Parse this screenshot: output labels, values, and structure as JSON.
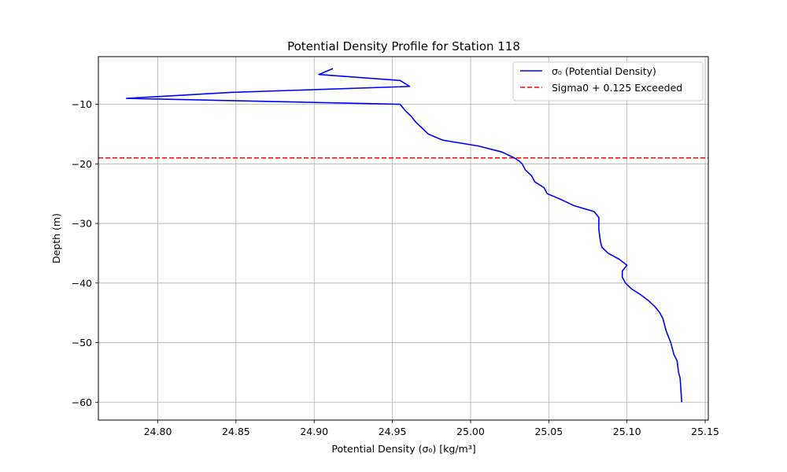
{
  "chart_data": {
    "type": "line",
    "title": "Potential Density Profile for Station 118",
    "xlabel": "Potential Density (σ₀) [kg/m³]",
    "ylabel": "Depth (m)",
    "xlim": [
      24.762,
      25.152
    ],
    "ylim": [
      -63,
      -2
    ],
    "xticks": [
      24.8,
      24.85,
      24.9,
      24.95,
      25.0,
      25.05,
      25.1,
      25.15
    ],
    "xtick_labels": [
      "24.80",
      "24.85",
      "24.90",
      "24.95",
      "25.00",
      "25.05",
      "25.10",
      "25.15"
    ],
    "yticks": [
      -10,
      -20,
      -30,
      -40,
      -50,
      -60
    ],
    "ytick_labels": [
      "−10",
      "−20",
      "−30",
      "−40",
      "−50",
      "−60"
    ],
    "grid": true,
    "legend_position": "upper-right",
    "series": [
      {
        "name": "σ₀ (Potential Density)",
        "color": "#0000ff",
        "style": "solid",
        "x": [
          24.912,
          24.903,
          24.955,
          24.961,
          24.847,
          24.78,
          24.955,
          24.958,
          24.962,
          24.965,
          24.969,
          24.973,
          24.982,
          25.005,
          25.02,
          25.028,
          25.031,
          25.033,
          25.035,
          25.039,
          25.04,
          25.041,
          25.047,
          25.048,
          25.049,
          25.058,
          25.066,
          25.079,
          25.082,
          25.082,
          25.083,
          25.084,
          25.088,
          25.095,
          25.1,
          25.097,
          25.097,
          25.099,
          25.103,
          25.109,
          25.114,
          25.118,
          25.121,
          25.123,
          25.124,
          25.125,
          25.128,
          25.129,
          25.13,
          25.132,
          25.133,
          25.134,
          25.135
        ],
        "y": [
          -4,
          -5,
          -6,
          -7,
          -8,
          -9,
          -10,
          -11,
          -12,
          -13,
          -14,
          -15,
          -16,
          -17,
          -18,
          -19,
          -19.5,
          -20,
          -21,
          -22,
          -22.5,
          -23,
          -24,
          -24.5,
          -25,
          -26,
          -27,
          -28,
          -29,
          -31,
          -33,
          -34,
          -35,
          -36,
          -37,
          -38,
          -39,
          -40,
          -41,
          -42,
          -43,
          -44,
          -45,
          -46,
          -47,
          -48,
          -50,
          -51,
          -52,
          -53,
          -55,
          -56,
          -60
        ]
      },
      {
        "name": "Sigma0 + 0.125 Exceeded",
        "color": "#ff0000",
        "style": "dashed",
        "hline_y": -19
      }
    ]
  }
}
